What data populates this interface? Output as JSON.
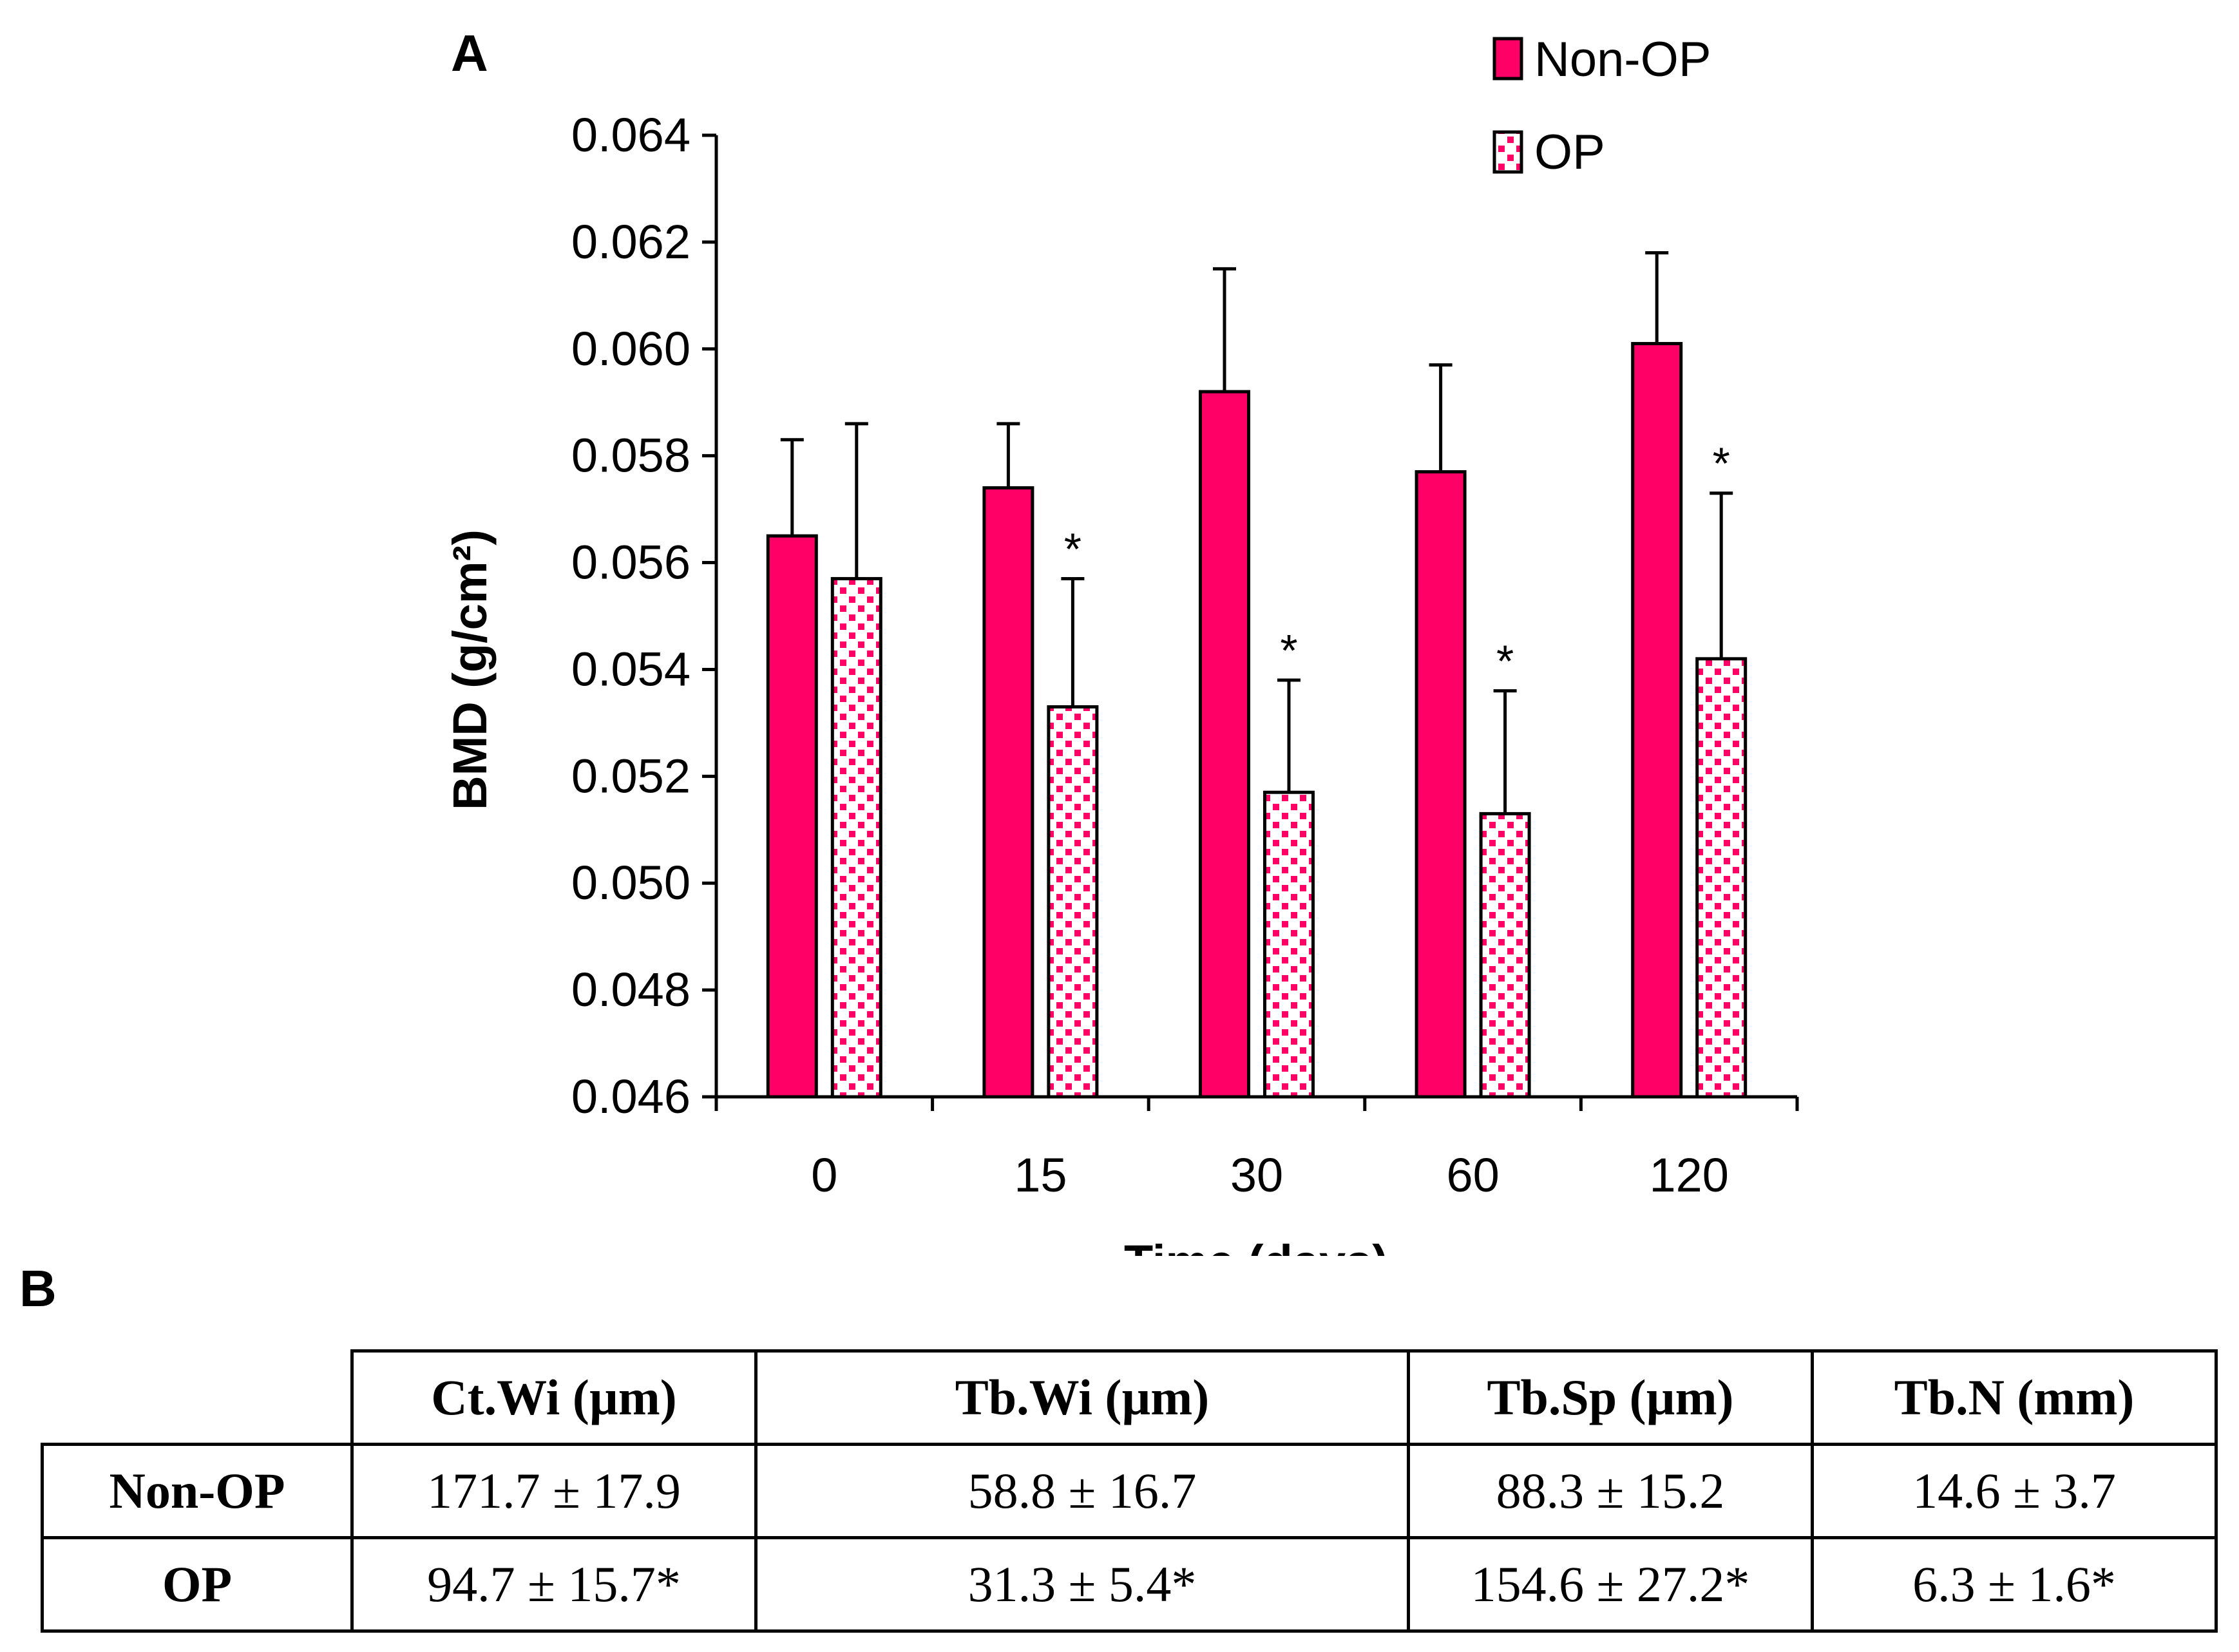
{
  "chart_data": {
    "type": "bar",
    "panel_label": "A",
    "title": "",
    "xlabel": "Time (days)",
    "ylabel": "BMD (g/cm²)",
    "categories": [
      "0",
      "15",
      "30",
      "60",
      "120"
    ],
    "ylim": [
      0.046,
      0.064
    ],
    "yticks": [
      "0.046",
      "0.048",
      "0.050",
      "0.052",
      "0.054",
      "0.056",
      "0.058",
      "0.060",
      "0.062",
      "0.064"
    ],
    "series": [
      {
        "name": "Non-OP",
        "values": [
          0.0565,
          0.0574,
          0.0592,
          0.0577,
          0.0601
        ],
        "errors": [
          0.0018,
          0.0012,
          0.0023,
          0.002,
          0.0017
        ],
        "significance": [
          "",
          "",
          "",
          "",
          ""
        ],
        "fill": "solid"
      },
      {
        "name": "OP",
        "values": [
          0.0557,
          0.0533,
          0.0517,
          0.0513,
          0.0542
        ],
        "errors": [
          0.0029,
          0.0024,
          0.0021,
          0.0023,
          0.0031
        ],
        "significance": [
          "",
          "*",
          "*",
          "*",
          "*"
        ],
        "fill": "dotted"
      }
    ],
    "legend_position": "top-right"
  },
  "colors": {
    "bar": "#ff0066",
    "outline": "#000000",
    "pattern_bg": "#ffffff"
  },
  "table": {
    "panel_label": "B",
    "headers": [
      "",
      "Ct.Wi (µm)",
      "Tb.Wi (µm)",
      "Tb.Sp (µm)",
      "Tb.N (mm)"
    ],
    "rows": [
      {
        "label": "Non-OP",
        "cells": [
          "171.7 ± 17.9",
          "58.8 ± 16.7",
          "88.3 ± 15.2",
          "14.6 ± 3.7"
        ]
      },
      {
        "label": "OP",
        "cells": [
          "94.7 ± 15.7*",
          "31.3 ± 5.4*",
          "154.6 ± 27.2*",
          "6.3 ± 1.6*"
        ]
      }
    ]
  }
}
